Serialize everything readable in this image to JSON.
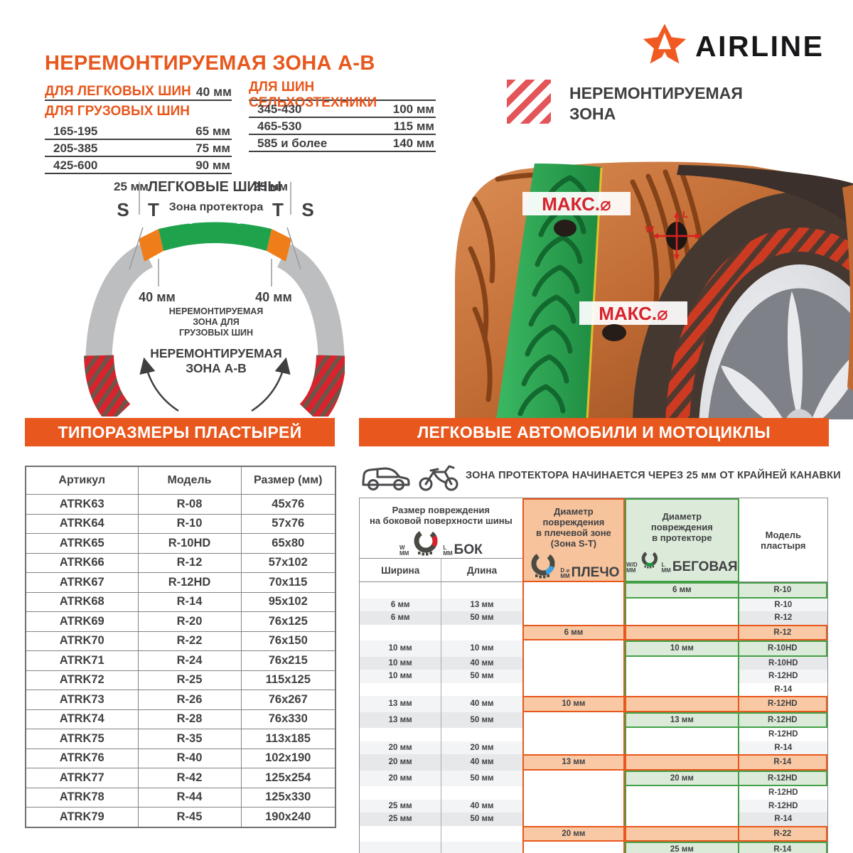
{
  "brand": {
    "name": "AIRLINE",
    "logo_icon": "star-a-logo"
  },
  "badge": {
    "line1": "НЕРЕМОНТИРУЕМАЯ",
    "line2": "ЗОНА",
    "icon": "red-diagonal-stripes"
  },
  "title": "НЕРЕМОНТИРУЕМАЯ ЗОНА А-В",
  "top_tables": {
    "passenger": {
      "header": "ДЛЯ ЛЕГКОВЫХ ШИН",
      "value": "40 мм"
    },
    "truck": {
      "header": "ДЛЯ ГРУЗОВЫХ ШИН",
      "rows": [
        [
          "165-195",
          "65 мм"
        ],
        [
          "205-385",
          "75 мм"
        ],
        [
          "425-600",
          "90 мм"
        ]
      ]
    },
    "agro": {
      "header": "ДЛЯ ШИН СЕЛЬХОЗТЕХНИКИ",
      "rows": [
        [
          "345-430",
          "100 мм"
        ],
        [
          "465-530",
          "115 мм"
        ],
        [
          "585 и более",
          "140 мм"
        ]
      ]
    }
  },
  "diagram": {
    "left_25": "25 мм",
    "right_25": "25 мм",
    "passenger": "ЛЕГКОВЫЕ ШИНЫ",
    "s1": "S",
    "t1": "T",
    "tread_zone": "Зона протектора",
    "t2": "T",
    "s2": "S",
    "left_40": "40 мм",
    "right_40": "40 мм",
    "truck_l1": "НЕРЕМОНТИРУЕМАЯ",
    "truck_l2": "ЗОНА ДЛЯ",
    "truck_l3": "ГРУЗОВЫХ ШИН",
    "ab_l1": "НЕРЕМОНТИРУЕМАЯ",
    "ab_l2": "ЗОНА А-В"
  },
  "illustration": {
    "max_top": "МАКС.⌀",
    "max_bottom": "МАКС.⌀",
    "w": "W",
    "l": "L"
  },
  "sections": {
    "patch_header": "ТИПОРАЗМЕРЫ ПЛАСТЫРЕЙ",
    "vehicle_header": "ЛЕГКОВЫЕ АВТОМОБИЛИ И МОТОЦИКЛЫ",
    "vehicle_note": "ЗОНА ПРОТЕКТОРА НАЧИНАЕТСЯ ЧЕРЕЗ 25 мм ОТ КРАЙНЕЙ КАНАВКИ"
  },
  "patch_table": {
    "columns": [
      "Артикул",
      "Модель",
      "Размер (мм)"
    ],
    "rows": [
      [
        "ATRK63",
        "R-08",
        "45x76"
      ],
      [
        "ATRK64",
        "R-10",
        "57x76"
      ],
      [
        "ATRK65",
        "R-10HD",
        "65x80"
      ],
      [
        "ATRK66",
        "R-12",
        "57x102"
      ],
      [
        "ATRK67",
        "R-12HD",
        "70x115"
      ],
      [
        "ATRK68",
        "R-14",
        "95x102"
      ],
      [
        "ATRK69",
        "R-20",
        "76x125"
      ],
      [
        "ATRK70",
        "R-22",
        "76x150"
      ],
      [
        "ATRK71",
        "R-24",
        "76x215"
      ],
      [
        "ATRK72",
        "R-25",
        "115x125"
      ],
      [
        "ATRK73",
        "R-26",
        "76x267"
      ],
      [
        "ATRK74",
        "R-28",
        "76x330"
      ],
      [
        "ATRK75",
        "R-35",
        "113x185"
      ],
      [
        "ATRK76",
        "R-40",
        "102x190"
      ],
      [
        "ATRK77",
        "R-42",
        "125x254"
      ],
      [
        "ATRK78",
        "R-44",
        "125x330"
      ],
      [
        "ATRK79",
        "R-45",
        "190x240"
      ]
    ]
  },
  "vehicle_table": {
    "headers": {
      "side": "Размер повреждения\nна боковой поверхности шины",
      "side_icon": "БОК",
      "shoulder": "Диаметр\nповреждения\nв плечевой зоне\n(Зона S-T)",
      "shoulder_icon": "ПЛЕЧО",
      "tread": "Диаметр\nповреждения\nв протекторе",
      "tread_icon": "БЕГОВАЯ",
      "model": "Модель\nпластыря",
      "width": "Ширина",
      "length": "Длина",
      "w": "W",
      "l": "L",
      "d": "D ⌀",
      "wd": "W/D",
      "mm": "ММ"
    },
    "rows": [
      {
        "w": "",
        "l": "",
        "sh": "",
        "tread": "6 мм",
        "model": "R-10",
        "hl": "green",
        "shade": "white"
      },
      {
        "w": "6 мм",
        "l": "13 мм",
        "sh": "",
        "tread": "",
        "model": "R-10",
        "hl": "none",
        "shade": "light"
      },
      {
        "w": "6 мм",
        "l": "50 мм",
        "sh": "",
        "tread": "",
        "model": "R-12",
        "hl": "none",
        "shade": "dark"
      },
      {
        "w": "",
        "l": "",
        "sh": "6 мм",
        "tread": "",
        "model": "R-12",
        "hl": "orange",
        "shade": "white"
      },
      {
        "w": "10 мм",
        "l": "10 мм",
        "sh": "",
        "tread": "10 мм",
        "model": "R-10HD",
        "hl": "green",
        "shade": "light"
      },
      {
        "w": "10 мм",
        "l": "40 мм",
        "sh": "",
        "tread": "",
        "model": "R-10HD",
        "hl": "none",
        "shade": "dark"
      },
      {
        "w": "10 мм",
        "l": "50 мм",
        "sh": "",
        "tread": "",
        "model": "R-12HD",
        "hl": "none",
        "shade": "light"
      },
      {
        "w": "",
        "l": "",
        "sh": "",
        "tread": "",
        "model": "R-14",
        "hl": "none",
        "shade": "white"
      },
      {
        "w": "13 мм",
        "l": "40 мм",
        "sh": "10 мм",
        "tread": "",
        "model": "R-12HD",
        "hl": "orange",
        "shade": "light"
      },
      {
        "w": "13 мм",
        "l": "50 мм",
        "sh": "",
        "tread": "13 мм",
        "model": "R-12HD",
        "hl": "green",
        "shade": "dark"
      },
      {
        "w": "",
        "l": "",
        "sh": "",
        "tread": "",
        "model": "R-12HD",
        "hl": "none",
        "shade": "white"
      },
      {
        "w": "20 мм",
        "l": "20 мм",
        "sh": "",
        "tread": "",
        "model": "R-14",
        "hl": "none",
        "shade": "light"
      },
      {
        "w": "20 мм",
        "l": "40 мм",
        "sh": "13 мм",
        "tread": "",
        "model": "R-14",
        "hl": "orange",
        "shade": "dark"
      },
      {
        "w": "20 мм",
        "l": "50 мм",
        "sh": "",
        "tread": "20 мм",
        "model": "R-12HD",
        "hl": "green",
        "shade": "light"
      },
      {
        "w": "",
        "l": "",
        "sh": "",
        "tread": "",
        "model": "R-12HD",
        "hl": "none",
        "shade": "white"
      },
      {
        "w": "25 мм",
        "l": "40 мм",
        "sh": "",
        "tread": "",
        "model": "R-12HD",
        "hl": "none",
        "shade": "light"
      },
      {
        "w": "25 мм",
        "l": "50 мм",
        "sh": "",
        "tread": "",
        "model": "R-14",
        "hl": "none",
        "shade": "dark"
      },
      {
        "w": "",
        "l": "",
        "sh": "20 мм",
        "tread": "",
        "model": "R-22",
        "hl": "orange",
        "shade": "white"
      },
      {
        "w": "",
        "l": "",
        "sh": "",
        "tread": "25 мм",
        "model": "R-14",
        "hl": "green",
        "shade": "light"
      }
    ]
  },
  "colors": {
    "accent_orange": "#E8571D",
    "tread_green": "#1EA24C",
    "zone_orange": "#EF7D1A",
    "sidewall_gray": "#BDBEC0",
    "stripe_red": "#D8232E",
    "ink": "#3F3F41",
    "hl_orange_bg": "#F8C9A4",
    "hl_green_bg": "#DCEBD9",
    "hl_green_border": "#43A047"
  }
}
